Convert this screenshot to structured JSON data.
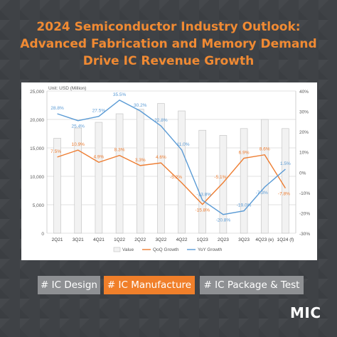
{
  "title": {
    "line1": "2024 Semiconductor Industry Outlook:",
    "line2": "Advanced Fabrication and Memory Demand",
    "line3": "Drive IC Revenue Growth"
  },
  "tags": {
    "design": "# IC Design",
    "manufacture": "# IC Manufacture",
    "package": "# IC Package & Test"
  },
  "logo": "MIC",
  "colors": {
    "accent": "#f08a33",
    "background": "#3f4246",
    "tag_gray": "#8e9093",
    "qoq": "#ee7d31",
    "yoy": "#5b9bd5"
  },
  "chart_data": {
    "type": "bar",
    "unit_label": "Unit: USD (Million)",
    "categories": [
      "2Q21",
      "3Q21",
      "4Q21",
      "1Q22",
      "2Q22",
      "3Q22",
      "4Q22",
      "1Q23",
      "2Q23",
      "3Q23",
      "4Q23 (e)",
      "1Q24 (f)"
    ],
    "ylim": [
      0,
      25000
    ],
    "y_ticks": [
      "0",
      "5,000",
      "10,000",
      "15,000",
      "20,000",
      "25,000"
    ],
    "y2lim": [
      -30,
      40
    ],
    "y2_ticks": [
      "-30%",
      "-20%",
      "-10%",
      "0%",
      "10%",
      "20%",
      "30%",
      "40%"
    ],
    "grid": true,
    "legend_position": "bottom",
    "series": [
      {
        "name": "Value",
        "kind": "bar",
        "values": [
          16700,
          18500,
          19500,
          21000,
          21800,
          22800,
          21500,
          18100,
          17200,
          18400,
          20000,
          18400
        ]
      },
      {
        "name": "QoQ Growth",
        "kind": "line",
        "axis": "right",
        "values": [
          7.5,
          10.9,
          4.9,
          8.3,
          3.3,
          4.6,
          -5.2,
          -15.8,
          -5.1,
          6.9,
          8.6,
          -7.8
        ],
        "labels": [
          "7.5%",
          "10.9%",
          "4.9%",
          "8.3%",
          "3.3%",
          "4.6%",
          "-5.2%",
          "-15.8%",
          "-5.1%",
          "6.9%",
          "8.6%",
          "-7.8%"
        ]
      },
      {
        "name": "YoY Growth",
        "kind": "line",
        "axis": "right",
        "values": [
          28.8,
          25.4,
          27.5,
          35.5,
          30.2,
          22.8,
          11.0,
          -13.8,
          -20.8,
          -19.0,
          -7.3,
          1.5
        ],
        "labels": [
          "28.8%",
          "25.4%",
          "27.5%",
          "35.5%",
          "30.2%",
          "22.8%",
          "11.0%",
          "-13.8%",
          "-20.8%",
          "-19.0%",
          "-7.3%",
          "1.5%"
        ]
      }
    ]
  }
}
